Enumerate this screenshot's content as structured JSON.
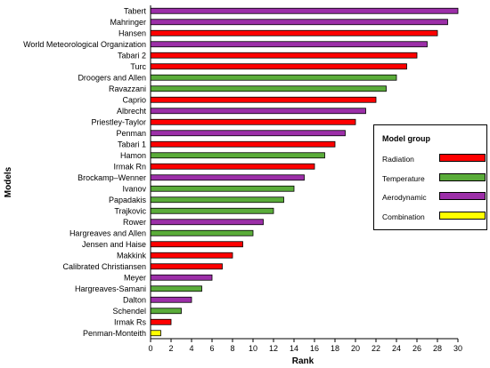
{
  "chart_data": {
    "type": "bar",
    "orientation": "horizontal",
    "title": "",
    "xlabel": "Rank",
    "ylabel": "Models",
    "xlim": [
      0,
      30
    ],
    "xticks": [
      0,
      2,
      4,
      6,
      8,
      10,
      12,
      14,
      16,
      18,
      20,
      22,
      24,
      26,
      28,
      30
    ],
    "grid": false,
    "legend_position": "right",
    "categories": [
      "Tabert",
      "Mahringer",
      "Hansen",
      "World Meteorological Organization",
      "Tabari 2",
      "Turc",
      "Droogers and Allen",
      "Ravazzani",
      "Caprio",
      "Albrecht",
      "Priestley-Taylor",
      "Penman",
      "Tabari 1",
      "Hamon",
      "Irmak Rn",
      "Brockamp–Wenner",
      "Ivanov",
      "Papadakis",
      "Trajkovic",
      "Rower",
      "Hargreaves and Allen",
      "Jensen and Haise",
      "Makkink",
      "Calibrated Christiansen",
      "Meyer",
      "Hargreaves-Samani",
      "Dalton",
      "Schendel",
      "Irmak Rs",
      "Penman-Monteith"
    ],
    "values": [
      30,
      29,
      28,
      27,
      26,
      25,
      24,
      23,
      22,
      21,
      20,
      19,
      18,
      17,
      16,
      15,
      14,
      13,
      12,
      11,
      10,
      9,
      8,
      7,
      6,
      5,
      4,
      3,
      2,
      1
    ],
    "groups": [
      "Aerodynamic",
      "Aerodynamic",
      "Radiation",
      "Aerodynamic",
      "Radiation",
      "Radiation",
      "Temperature",
      "Temperature",
      "Radiation",
      "Aerodynamic",
      "Radiation",
      "Aerodynamic",
      "Radiation",
      "Temperature",
      "Radiation",
      "Aerodynamic",
      "Temperature",
      "Temperature",
      "Temperature",
      "Aerodynamic",
      "Temperature",
      "Radiation",
      "Radiation",
      "Radiation",
      "Aerodynamic",
      "Temperature",
      "Aerodynamic",
      "Temperature",
      "Radiation",
      "Combination"
    ],
    "legend": {
      "title": "Model group",
      "entries": [
        {
          "name": "Radiation",
          "color": "#ff0000"
        },
        {
          "name": "Temperature",
          "color": "#5aac3a"
        },
        {
          "name": "Aerodynamic",
          "color": "#9c2fa8"
        },
        {
          "name": "Combination",
          "color": "#ffff00"
        }
      ]
    }
  }
}
